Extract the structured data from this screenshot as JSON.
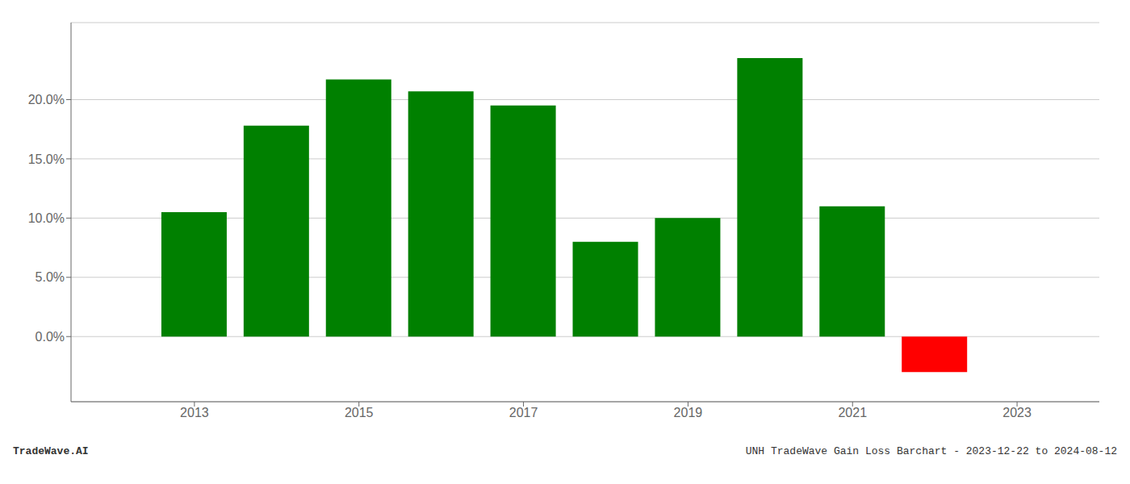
{
  "chart_data": {
    "type": "bar",
    "x": [
      2013,
      2014,
      2015,
      2016,
      2017,
      2018,
      2019,
      2020,
      2021,
      2022
    ],
    "values": [
      0.105,
      0.178,
      0.217,
      0.207,
      0.195,
      0.08,
      0.1,
      0.235,
      0.11,
      -0.03
    ],
    "colors": [
      "#008000",
      "#008000",
      "#008000",
      "#008000",
      "#008000",
      "#008000",
      "#008000",
      "#008000",
      "#008000",
      "#ff0000"
    ],
    "xlim": [
      2011.5,
      2024.0
    ],
    "xticks": [
      2013,
      2015,
      2017,
      2019,
      2021,
      2023
    ],
    "ylim": [
      -0.055,
      0.265
    ],
    "yticks": [
      {
        "value": 0.0,
        "label": "0.0%"
      },
      {
        "value": 0.05,
        "label": "5.0%"
      },
      {
        "value": 0.1,
        "label": "10.0%"
      },
      {
        "value": 0.15,
        "label": "15.0%"
      },
      {
        "value": 0.2,
        "label": "20.0%"
      }
    ],
    "grid": true,
    "annotations": [
      "TradeWave.AI",
      "UNH TradeWave Gain Loss Barchart - 2023-12-22 to 2024-08-12"
    ]
  }
}
